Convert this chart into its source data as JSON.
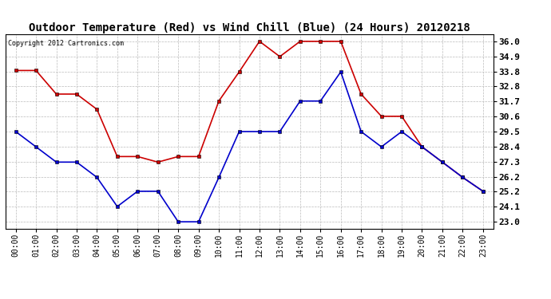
{
  "title": "Outdoor Temperature (Red) vs Wind Chill (Blue) (24 Hours) 20120218",
  "copyright": "Copyright 2012 Cartronics.com",
  "hours": [
    "00:00",
    "01:00",
    "02:00",
    "03:00",
    "04:00",
    "05:00",
    "06:00",
    "07:00",
    "08:00",
    "09:00",
    "10:00",
    "11:00",
    "12:00",
    "13:00",
    "14:00",
    "15:00",
    "16:00",
    "17:00",
    "18:00",
    "19:00",
    "20:00",
    "21:00",
    "22:00",
    "23:00"
  ],
  "red_temp": [
    33.9,
    33.9,
    32.2,
    32.2,
    31.1,
    27.7,
    27.7,
    27.3,
    27.7,
    27.7,
    31.7,
    33.8,
    36.0,
    34.9,
    36.0,
    36.0,
    36.0,
    32.2,
    30.6,
    30.6,
    28.4,
    27.3,
    26.2,
    25.2
  ],
  "blue_wc": [
    29.5,
    28.4,
    27.3,
    27.3,
    26.2,
    24.1,
    25.2,
    25.2,
    23.0,
    23.0,
    26.2,
    29.5,
    29.5,
    29.5,
    31.7,
    31.7,
    33.8,
    29.5,
    28.4,
    29.5,
    28.4,
    27.3,
    26.2,
    25.2
  ],
  "ylim": [
    22.5,
    36.5
  ],
  "yticks": [
    23.0,
    24.1,
    25.2,
    26.2,
    27.3,
    28.4,
    29.5,
    30.6,
    31.7,
    32.8,
    33.8,
    34.9,
    36.0
  ],
  "red_color": "#cc0000",
  "blue_color": "#0000cc",
  "bg_color": "#ffffff",
  "grid_color": "#bbbbbb",
  "title_fontsize": 10,
  "copyright_fontsize": 6,
  "tick_fontsize": 7
}
